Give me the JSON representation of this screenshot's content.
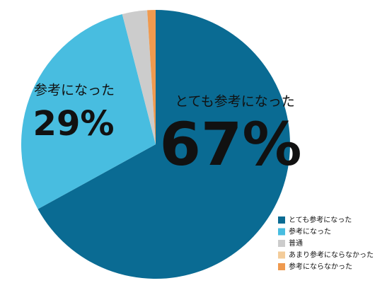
{
  "chart_data": {
    "type": "pie",
    "categories": [
      "とても参考になった",
      "参考になった",
      "普通",
      "あまり参考にならなかった",
      "参考にならなかった"
    ],
    "values": [
      67,
      29,
      3,
      0,
      1
    ],
    "value_labels": [
      "67%",
      "29%",
      null,
      null,
      null
    ],
    "colors": [
      "#0a6b93",
      "#48bde0",
      "#cccccc",
      "#f3cc9a",
      "#ef9a4f"
    ]
  }
}
